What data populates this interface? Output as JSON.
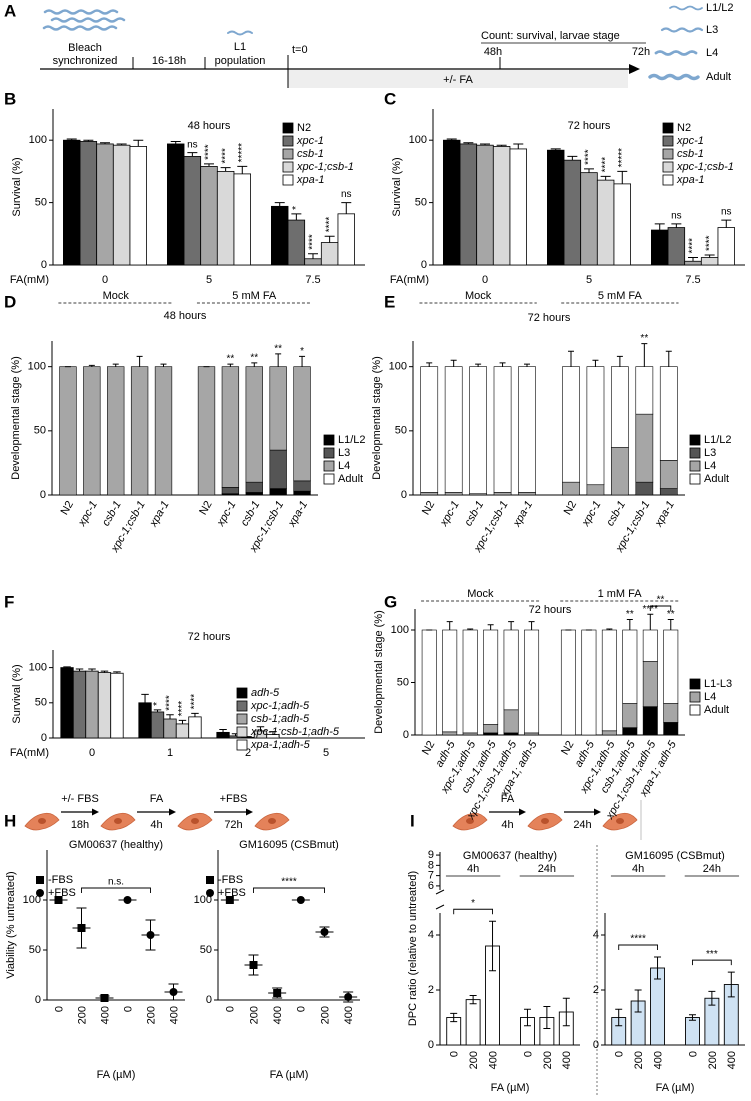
{
  "schematic_a": {
    "label": "A",
    "bleach": [
      "Bleach",
      "synchronized"
    ],
    "interval": "16-18h",
    "l1": [
      "L1",
      "population"
    ],
    "t0": "t=0",
    "count": "Count: survival, larvae stage",
    "t48": "48h",
    "t72": "72h",
    "treatment": "+/- FA",
    "stages": [
      "L1/L2",
      "L3",
      "L4",
      "Adult"
    ]
  },
  "schematic_h": {
    "label": "H",
    "steps": [
      [
        "+/- FBS",
        "18h"
      ],
      [
        "FA",
        "4h"
      ],
      [
        "+FBS",
        "72h"
      ]
    ]
  },
  "schematic_i": {
    "label": "I",
    "steps": [
      [
        "FA",
        "4h"
      ],
      [
        "24h"
      ]
    ]
  },
  "chart_data": [
    {
      "type": "bar",
      "label": "B",
      "title": "48 hours",
      "ylabel": "Survival (%)",
      "xlabel": "FA(mM)",
      "categories": [
        "0",
        "5",
        "7.5"
      ],
      "ylim": [
        0,
        125
      ],
      "yticks": [
        0,
        50,
        100
      ],
      "legend": "upper right",
      "series": [
        {
          "name": "N2",
          "color": "#000000",
          "values": [
            100,
            97,
            47
          ],
          "errors": [
            1,
            2,
            3
          ]
        },
        {
          "name": "xpc-1",
          "color": "#6e6e6e",
          "values": [
            99,
            87,
            36
          ],
          "errors": [
            1,
            3,
            5
          ],
          "annotations": [
            null,
            "ns",
            "*"
          ]
        },
        {
          "name": "csb-1",
          "color": "#a6a6a6",
          "values": [
            97,
            79,
            5
          ],
          "errors": [
            1,
            2,
            4
          ],
          "annotations": [
            null,
            "****",
            "****"
          ]
        },
        {
          "name": "xpc-1;csb-1",
          "color": "#d9d9d9",
          "values": [
            96,
            75,
            18
          ],
          "errors": [
            1,
            3,
            5
          ],
          "annotations": [
            null,
            "****",
            "****"
          ]
        },
        {
          "name": "xpa-1",
          "color": "#ffffff",
          "values": [
            95,
            73,
            41
          ],
          "errors": [
            5,
            6,
            9
          ],
          "annotations": [
            null,
            "*****",
            "ns"
          ]
        }
      ]
    },
    {
      "type": "bar",
      "label": "C",
      "title": "72 hours",
      "ylabel": "Survival (%)",
      "xlabel": "FA(mM)",
      "categories": [
        "0",
        "5",
        "7.5"
      ],
      "ylim": [
        0,
        125
      ],
      "yticks": [
        0,
        50,
        100
      ],
      "legend": "upper right",
      "series": [
        {
          "name": "N2",
          "color": "#000000",
          "values": [
            100,
            92,
            28
          ],
          "errors": [
            1,
            1,
            5
          ]
        },
        {
          "name": "xpc-1",
          "color": "#6e6e6e",
          "values": [
            97,
            84,
            30
          ],
          "errors": [
            1,
            3,
            3
          ],
          "annotations": [
            null,
            null,
            "ns"
          ]
        },
        {
          "name": "csb-1",
          "color": "#a6a6a6",
          "values": [
            96,
            74,
            3
          ],
          "errors": [
            1,
            3,
            3
          ],
          "annotations": [
            null,
            "****",
            "****"
          ]
        },
        {
          "name": "xpc-1;csb-1",
          "color": "#d9d9d9",
          "values": [
            95,
            68,
            6
          ],
          "errors": [
            1,
            3,
            2
          ],
          "annotations": [
            null,
            "****",
            "****"
          ]
        },
        {
          "name": "xpa-1",
          "color": "#ffffff",
          "values": [
            93,
            65,
            30
          ],
          "errors": [
            4,
            10,
            6
          ],
          "annotations": [
            null,
            "*****",
            "ns"
          ]
        }
      ]
    },
    {
      "type": "stacked_bar",
      "label": "D",
      "title": "48 hours",
      "ylabel": "Developmental stage (%)",
      "groups": [
        "Mock",
        "5 mM FA"
      ],
      "categories": [
        "N2",
        "xpc-1",
        "csb-1",
        "xpc-1;csb-1",
        "xpa-1",
        "N2",
        "xpc-1",
        "csb-1",
        "xpc-1;csb-1",
        "xpa-1"
      ],
      "ylim": [
        0,
        120
      ],
      "yticks": [
        0,
        50,
        100
      ],
      "legend": "right",
      "annotations": [
        null,
        null,
        null,
        null,
        null,
        null,
        "**",
        "**",
        "**",
        "*"
      ],
      "series": [
        {
          "name": "L1/L2",
          "color": "#000000",
          "values": [
            0,
            0,
            0,
            0,
            0,
            0,
            1,
            2,
            5,
            3
          ],
          "annotations": [
            null,
            null,
            null,
            null,
            null,
            null,
            null,
            "**",
            null,
            null
          ]
        },
        {
          "name": "L3",
          "color": "#555555",
          "values": [
            0,
            0,
            0,
            0,
            0,
            0,
            5,
            8,
            30,
            8
          ],
          "annotations": [
            null,
            null,
            null,
            null,
            null,
            null,
            "**",
            "**",
            "**",
            null
          ]
        },
        {
          "name": "L4",
          "color": "#a6a6a6",
          "values": [
            100,
            100,
            100,
            100,
            100,
            100,
            94,
            90,
            65,
            89
          ],
          "errors": [
            0,
            1,
            2,
            8,
            2,
            0,
            2,
            3,
            10,
            8
          ]
        },
        {
          "name": "Adult",
          "color": "#ffffff",
          "values": [
            0,
            0,
            0,
            0,
            0,
            0,
            0,
            0,
            0,
            0
          ]
        }
      ]
    },
    {
      "type": "stacked_bar",
      "label": "E",
      "title": "72 hours",
      "ylabel": "Developmental stage (%)",
      "groups": [
        "Mock",
        "5 mM FA"
      ],
      "categories": [
        "N2",
        "xpc-1",
        "csb-1",
        "xpc-1;csb-1",
        "xpa-1",
        "N2",
        "xpc-1",
        "csb-1",
        "xpc-1;csb-1",
        "xpa-1"
      ],
      "ylim": [
        0,
        120
      ],
      "yticks": [
        0,
        50,
        100
      ],
      "legend": "right",
      "annotations": [
        null,
        null,
        null,
        null,
        null,
        null,
        null,
        null,
        "**",
        null
      ],
      "series": [
        {
          "name": "L1/L2",
          "color": "#000000",
          "values": [
            0,
            0,
            0,
            0,
            0,
            0,
            0,
            0,
            0,
            0
          ]
        },
        {
          "name": "L3",
          "color": "#555555",
          "values": [
            0,
            0,
            0,
            0,
            0,
            0,
            0,
            0,
            10,
            5
          ]
        },
        {
          "name": "L4",
          "color": "#a6a6a6",
          "values": [
            2,
            2,
            1,
            2,
            2,
            10,
            8,
            37,
            53,
            22
          ],
          "annotations": [
            null,
            null,
            null,
            null,
            null,
            null,
            null,
            "*",
            "**",
            null
          ]
        },
        {
          "name": "Adult",
          "color": "#ffffff",
          "values": [
            98,
            98,
            99,
            98,
            98,
            90,
            92,
            63,
            37,
            73
          ],
          "errors": [
            3,
            5,
            2,
            3,
            2,
            12,
            5,
            8,
            18,
            12
          ]
        }
      ]
    },
    {
      "type": "bar",
      "label": "F",
      "title": "72 hours",
      "ylabel": "Survival (%)",
      "xlabel": "FA(mM)",
      "categories": [
        "0",
        "1",
        "2",
        "5"
      ],
      "ylim": [
        0,
        125
      ],
      "yticks": [
        0,
        50,
        100
      ],
      "legend": "upper right",
      "series": [
        {
          "name": "adh-5",
          "color": "#000000",
          "values": [
            100,
            50,
            8,
            0
          ],
          "errors": [
            1,
            12,
            4,
            0
          ]
        },
        {
          "name": "xpc-1;adh-5",
          "color": "#6e6e6e",
          "values": [
            95,
            37,
            3,
            0
          ],
          "errors": [
            3,
            3,
            3,
            0
          ],
          "annotations": [
            null,
            "*",
            null,
            null
          ]
        },
        {
          "name": "csb-1;adh-5",
          "color": "#a6a6a6",
          "values": [
            95,
            27,
            1,
            0
          ],
          "errors": [
            3,
            6,
            1,
            0
          ],
          "annotations": [
            null,
            "****",
            null,
            null
          ]
        },
        {
          "name": "xpc-1;csb-1;adh-5",
          "color": "#d9d9d9",
          "values": [
            93,
            20,
            10,
            0
          ],
          "errors": [
            2,
            5,
            6,
            0
          ],
          "annotations": [
            null,
            "****",
            null,
            null
          ]
        },
        {
          "name": "xpa-1;adh-5",
          "color": "#ffffff",
          "values": [
            92,
            30,
            5,
            0
          ],
          "errors": [
            2,
            5,
            4,
            0
          ],
          "annotations": [
            null,
            "****",
            null,
            null
          ]
        }
      ]
    },
    {
      "type": "stacked_bar",
      "label": "G",
      "title": "72 hours",
      "ylabel": "Developmental stage (%)",
      "groups": [
        "Mock",
        "1 mM FA"
      ],
      "categories": [
        "N2",
        "adh-5",
        "xpc-1;adh-5",
        "csb-1;adh-5",
        "xpc-1;csb-1;adh-5",
        "xpa-1; adh-5",
        "N2",
        "adh-5",
        "xpc-1;adh-5",
        "csb-1;adh-5",
        "xpc-1;csb-1;adh-5",
        "xpa-1; adh-5"
      ],
      "ylim": [
        0,
        120
      ],
      "yticks": [
        0,
        50,
        100
      ],
      "legend": "right",
      "annotations": [
        null,
        null,
        null,
        null,
        null,
        null,
        null,
        null,
        null,
        "**",
        "****",
        "**"
      ],
      "brackets": [
        "**"
      ],
      "series": [
        {
          "name": "L1-L3",
          "color": "#000000",
          "values": [
            0,
            0,
            0,
            2,
            2,
            0,
            0,
            0,
            0,
            7,
            27,
            12
          ],
          "annotations": [
            null,
            null,
            null,
            null,
            null,
            null,
            null,
            null,
            null,
            null,
            "***",
            null
          ]
        },
        {
          "name": "L4",
          "color": "#a6a6a6",
          "values": [
            0,
            3,
            2,
            8,
            22,
            2,
            0,
            0,
            4,
            23,
            43,
            18
          ],
          "annotations": [
            null,
            null,
            null,
            null,
            null,
            null,
            null,
            null,
            null,
            "**",
            "***",
            "**"
          ]
        },
        {
          "name": "Adult",
          "color": "#ffffff",
          "values": [
            100,
            97,
            98,
            90,
            76,
            98,
            100,
            100,
            96,
            70,
            30,
            70
          ],
          "errors": [
            0,
            8,
            1,
            5,
            8,
            8,
            0,
            0,
            1,
            10,
            15,
            10
          ]
        }
      ]
    },
    {
      "type": "dot",
      "title": "GM00637 (healthy)",
      "ylabel": "Viability (% untreated)",
      "xlabel": "FA (µM)",
      "categories": [
        "0",
        "200",
        "400",
        "0",
        "200",
        "400"
      ],
      "ylim": [
        0,
        150
      ],
      "yticks": [
        0,
        50,
        100
      ],
      "legend": "upper left",
      "brackets": [
        "n.s."
      ],
      "series": [
        {
          "name": "-FBS",
          "marker": "square",
          "color": "#000000",
          "values": [
            100,
            72,
            2,
            null,
            null,
            null
          ],
          "errors": [
            0,
            20,
            2,
            null,
            null,
            null
          ]
        },
        {
          "name": "+FBS",
          "marker": "circle",
          "color": "#000000",
          "values": [
            null,
            null,
            null,
            100,
            65,
            8
          ],
          "errors": [
            null,
            null,
            null,
            0,
            15,
            8
          ]
        }
      ]
    },
    {
      "type": "dot",
      "title": "GM16095 (CSBmut)",
      "xlabel": "FA (µM)",
      "categories": [
        "0",
        "200",
        "400",
        "0",
        "200",
        "400"
      ],
      "ylim": [
        0,
        150
      ],
      "yticks": [
        0,
        50,
        100
      ],
      "legend": "upper left",
      "brackets": [
        "****"
      ],
      "series": [
        {
          "name": "-FBS",
          "marker": "square",
          "color": "#000000",
          "values": [
            100,
            35,
            7,
            null,
            null,
            null
          ],
          "errors": [
            0,
            10,
            5,
            null,
            null,
            null
          ]
        },
        {
          "name": "+FBS",
          "marker": "circle",
          "color": "#000000",
          "values": [
            null,
            null,
            null,
            100,
            68,
            3
          ],
          "errors": [
            null,
            null,
            null,
            0,
            5,
            5
          ]
        }
      ]
    },
    {
      "type": "bar",
      "title": "GM00637 (healthy)",
      "ylabel": "DPC ratio (relative to untreated)",
      "xlabel": "FA (µM)",
      "groups": [
        "4h",
        "24h"
      ],
      "categories": [
        "0",
        "200",
        "400",
        "0",
        "200",
        "400"
      ],
      "ylim": [
        0,
        4.8
      ],
      "yticks": [
        0,
        2,
        4
      ],
      "ybreak_lim": [
        5.6,
        9.3
      ],
      "ybreak_ticks": [
        6,
        7,
        8,
        9
      ],
      "brackets": [
        "*"
      ],
      "series": [
        {
          "color": "#ffffff",
          "values": [
            1.0,
            1.65,
            3.6,
            1.0,
            1.0,
            1.2
          ],
          "errors": [
            0.15,
            0.15,
            0.9,
            0.3,
            0.4,
            0.5
          ]
        }
      ]
    },
    {
      "type": "bar",
      "title": "GM16095 (CSBmut)",
      "xlabel": "FA (µM)",
      "groups": [
        "4h",
        "24h"
      ],
      "categories": [
        "0",
        "200",
        "400",
        "0",
        "200",
        "400"
      ],
      "ylim": [
        0,
        4.8
      ],
      "yticks": [
        0,
        2,
        4
      ],
      "brackets": [
        "****",
        "***"
      ],
      "series": [
        {
          "color": "#cfe2f3",
          "values": [
            1.0,
            1.6,
            2.8,
            1.0,
            1.7,
            2.2
          ],
          "errors": [
            0.3,
            0.4,
            0.4,
            0.1,
            0.25,
            0.45
          ]
        }
      ]
    }
  ]
}
